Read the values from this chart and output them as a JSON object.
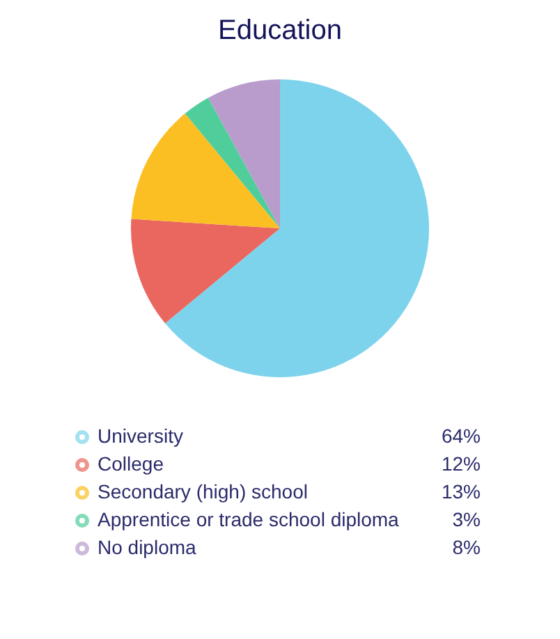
{
  "chart_data": {
    "type": "pie",
    "title": "Education",
    "categories": [
      "University",
      "College",
      "Secondary (high) school",
      "Apprentice or trade school diploma",
      "No diploma"
    ],
    "values": [
      64,
      12,
      13,
      3,
      8
    ],
    "colors": [
      "#7dd3ec",
      "#e9675f",
      "#fbbf24",
      "#4fce9c",
      "#b99ccb"
    ],
    "value_labels": [
      "64%",
      "12%",
      "13%",
      "3%",
      "8%"
    ],
    "legend": "bottom"
  }
}
